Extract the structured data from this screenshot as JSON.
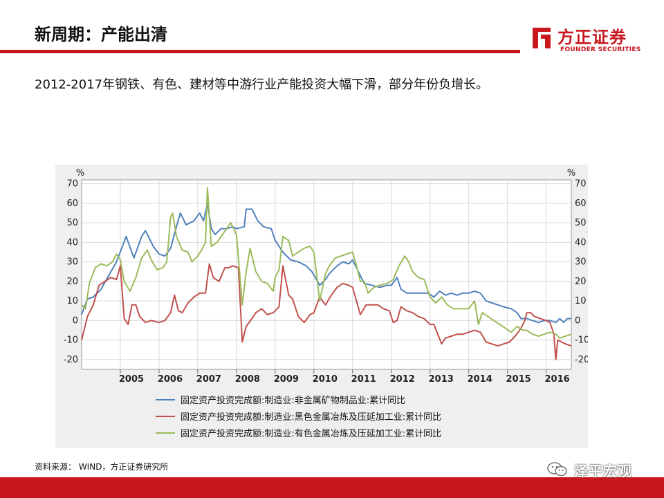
{
  "slide": {
    "title": "新周期：产能出清",
    "subtitle": "2012-2017年钢铁、有色、建材等中游行业产能投资大幅下滑，部分年份负增长。",
    "source": "资料来源： WIND，方正证券研究所",
    "logo_cn": "方正证券",
    "logo_en": "FOUNDER SECURITIES",
    "watermark": "泽平宏观",
    "brand_color": "#c8161d"
  },
  "chart_data": {
    "type": "line",
    "y_unit_left": "%",
    "y_unit_right": "%",
    "ylim": [
      -25,
      72
    ],
    "y_ticks": [
      70,
      60,
      50,
      40,
      30,
      20,
      10,
      0,
      -10,
      -20
    ],
    "xlim": [
      2004.0,
      2016.65
    ],
    "x_ticks": [
      2005,
      2006,
      2007,
      2008,
      2009,
      2010,
      2011,
      2012,
      2013,
      2014,
      2015,
      2016
    ],
    "legend_position": "bottom",
    "grid": true,
    "series": [
      {
        "name": "固定资产投资完成额:制造业:非金属矿物制品业:累计同比",
        "color": "#4f81bd",
        "points": [
          [
            2004.0,
            3
          ],
          [
            2004.15,
            11
          ],
          [
            2004.3,
            12
          ],
          [
            2004.5,
            16
          ],
          [
            2004.7,
            23
          ],
          [
            2004.9,
            30
          ],
          [
            2005.15,
            43
          ],
          [
            2005.35,
            32
          ],
          [
            2005.55,
            43
          ],
          [
            2005.65,
            46
          ],
          [
            2005.85,
            38
          ],
          [
            2006.0,
            34
          ],
          [
            2006.15,
            33
          ],
          [
            2006.3,
            37
          ],
          [
            2006.45,
            48
          ],
          [
            2006.55,
            55
          ],
          [
            2006.7,
            49
          ],
          [
            2006.9,
            51
          ],
          [
            2007.05,
            55
          ],
          [
            2007.15,
            51
          ],
          [
            2007.25,
            60
          ],
          [
            2007.35,
            47
          ],
          [
            2007.45,
            44
          ],
          [
            2007.6,
            47
          ],
          [
            2007.75,
            47
          ],
          [
            2007.9,
            48
          ],
          [
            2008.0,
            47
          ],
          [
            2008.2,
            48
          ],
          [
            2008.25,
            57
          ],
          [
            2008.4,
            57
          ],
          [
            2008.55,
            51
          ],
          [
            2008.7,
            48
          ],
          [
            2008.9,
            47
          ],
          [
            2009.0,
            41
          ],
          [
            2009.2,
            35
          ],
          [
            2009.4,
            31
          ],
          [
            2009.6,
            30
          ],
          [
            2009.8,
            28
          ],
          [
            2009.95,
            25
          ],
          [
            2010.15,
            18
          ],
          [
            2010.3,
            21
          ],
          [
            2010.4,
            24
          ],
          [
            2010.6,
            28
          ],
          [
            2010.75,
            30
          ],
          [
            2010.9,
            29
          ],
          [
            2011.0,
            31
          ],
          [
            2011.15,
            25
          ],
          [
            2011.3,
            19
          ],
          [
            2011.5,
            18
          ],
          [
            2011.7,
            17
          ],
          [
            2011.9,
            18
          ],
          [
            2012.0,
            18
          ],
          [
            2012.15,
            22
          ],
          [
            2012.25,
            16
          ],
          [
            2012.4,
            14
          ],
          [
            2012.6,
            14
          ],
          [
            2012.8,
            14
          ],
          [
            2012.95,
            14
          ],
          [
            2013.1,
            12
          ],
          [
            2013.25,
            15
          ],
          [
            2013.4,
            13
          ],
          [
            2013.55,
            14
          ],
          [
            2013.7,
            13
          ],
          [
            2013.85,
            14
          ],
          [
            2014.0,
            14
          ],
          [
            2014.15,
            15
          ],
          [
            2014.3,
            14
          ],
          [
            2014.45,
            10
          ],
          [
            2014.6,
            9
          ],
          [
            2014.75,
            8
          ],
          [
            2014.9,
            7
          ],
          [
            2015.1,
            6
          ],
          [
            2015.25,
            4
          ],
          [
            2015.35,
            1
          ],
          [
            2015.5,
            1
          ],
          [
            2015.65,
            0
          ],
          [
            2015.8,
            -1
          ],
          [
            2015.95,
            0
          ],
          [
            2016.1,
            0
          ],
          [
            2016.25,
            -1
          ],
          [
            2016.35,
            1
          ],
          [
            2016.45,
            -1
          ],
          [
            2016.55,
            1
          ],
          [
            2016.65,
            1
          ]
        ]
      },
      {
        "name": "固定资产投资完成额:制造业:黑色金属冶炼及压延加工业:累计同比",
        "color": "#c0504d",
        "points": [
          [
            2004.0,
            -10
          ],
          [
            2004.15,
            2
          ],
          [
            2004.3,
            8
          ],
          [
            2004.45,
            18
          ],
          [
            2004.6,
            20
          ],
          [
            2004.75,
            22
          ],
          [
            2004.9,
            21
          ],
          [
            2005.0,
            28
          ],
          [
            2005.1,
            1
          ],
          [
            2005.2,
            -2
          ],
          [
            2005.3,
            8
          ],
          [
            2005.4,
            8
          ],
          [
            2005.5,
            2
          ],
          [
            2005.65,
            -1
          ],
          [
            2005.8,
            0
          ],
          [
            2006.0,
            -1
          ],
          [
            2006.15,
            0
          ],
          [
            2006.3,
            4
          ],
          [
            2006.4,
            13
          ],
          [
            2006.5,
            5
          ],
          [
            2006.6,
            4
          ],
          [
            2006.75,
            9
          ],
          [
            2006.9,
            12
          ],
          [
            2007.05,
            14
          ],
          [
            2007.2,
            14
          ],
          [
            2007.3,
            29
          ],
          [
            2007.4,
            22
          ],
          [
            2007.55,
            20
          ],
          [
            2007.7,
            27
          ],
          [
            2007.8,
            27
          ],
          [
            2007.9,
            28
          ],
          [
            2008.05,
            27
          ],
          [
            2008.15,
            -11
          ],
          [
            2008.25,
            -3
          ],
          [
            2008.4,
            1
          ],
          [
            2008.5,
            4
          ],
          [
            2008.65,
            6
          ],
          [
            2008.8,
            3
          ],
          [
            2008.95,
            4
          ],
          [
            2009.0,
            5
          ],
          [
            2009.1,
            7
          ],
          [
            2009.2,
            28
          ],
          [
            2009.35,
            13
          ],
          [
            2009.45,
            11
          ],
          [
            2009.6,
            2
          ],
          [
            2009.75,
            -1
          ],
          [
            2009.9,
            3
          ],
          [
            2010.0,
            4
          ],
          [
            2010.15,
            12
          ],
          [
            2010.3,
            8
          ],
          [
            2010.45,
            13
          ],
          [
            2010.6,
            17
          ],
          [
            2010.75,
            19
          ],
          [
            2010.9,
            18
          ],
          [
            2011.0,
            17
          ],
          [
            2011.1,
            10
          ],
          [
            2011.2,
            3
          ],
          [
            2011.35,
            8
          ],
          [
            2011.5,
            8
          ],
          [
            2011.65,
            8
          ],
          [
            2011.8,
            6
          ],
          [
            2011.95,
            5
          ],
          [
            2012.05,
            -1
          ],
          [
            2012.15,
            0
          ],
          [
            2012.25,
            7
          ],
          [
            2012.4,
            5
          ],
          [
            2012.55,
            4
          ],
          [
            2012.7,
            2
          ],
          [
            2012.85,
            1
          ],
          [
            2013.0,
            -2
          ],
          [
            2013.1,
            -2
          ],
          [
            2013.2,
            -7
          ],
          [
            2013.3,
            -12
          ],
          [
            2013.4,
            -9
          ],
          [
            2013.55,
            -8
          ],
          [
            2013.7,
            -7
          ],
          [
            2013.85,
            -7
          ],
          [
            2014.0,
            -6
          ],
          [
            2014.15,
            -5
          ],
          [
            2014.3,
            -6
          ],
          [
            2014.45,
            -11
          ],
          [
            2014.6,
            -12
          ],
          [
            2014.75,
            -13
          ],
          [
            2014.9,
            -12
          ],
          [
            2015.05,
            -11
          ],
          [
            2015.2,
            -8
          ],
          [
            2015.35,
            -4
          ],
          [
            2015.45,
            0
          ],
          [
            2015.5,
            4
          ],
          [
            2015.6,
            4
          ],
          [
            2015.7,
            2
          ],
          [
            2015.85,
            1
          ],
          [
            2016.0,
            0
          ],
          [
            2016.1,
            -1
          ],
          [
            2016.2,
            -7
          ],
          [
            2016.25,
            -20
          ],
          [
            2016.3,
            -10
          ],
          [
            2016.4,
            -11
          ],
          [
            2016.5,
            -12
          ],
          [
            2016.65,
            -13
          ]
        ]
      },
      {
        "name": "固定资产投资完成额:制造业:有色金属冶炼及压延加工业:累计同比",
        "color": "#9bbb59",
        "points": [
          [
            2004.0,
            8
          ],
          [
            2004.1,
            6
          ],
          [
            2004.2,
            19
          ],
          [
            2004.35,
            27
          ],
          [
            2004.5,
            29
          ],
          [
            2004.65,
            28
          ],
          [
            2004.8,
            30
          ],
          [
            2004.9,
            34
          ],
          [
            2005.0,
            31
          ],
          [
            2005.1,
            20
          ],
          [
            2005.25,
            15
          ],
          [
            2005.4,
            22
          ],
          [
            2005.55,
            32
          ],
          [
            2005.7,
            36
          ],
          [
            2005.8,
            31
          ],
          [
            2005.95,
            26
          ],
          [
            2006.1,
            27
          ],
          [
            2006.2,
            30
          ],
          [
            2006.3,
            53
          ],
          [
            2006.35,
            55
          ],
          [
            2006.45,
            43
          ],
          [
            2006.6,
            36
          ],
          [
            2006.75,
            35
          ],
          [
            2006.85,
            30
          ],
          [
            2007.0,
            33
          ],
          [
            2007.1,
            36
          ],
          [
            2007.2,
            40
          ],
          [
            2007.25,
            68
          ],
          [
            2007.35,
            38
          ],
          [
            2007.5,
            40
          ],
          [
            2007.6,
            43
          ],
          [
            2007.75,
            47
          ],
          [
            2007.85,
            50
          ],
          [
            2008.0,
            44
          ],
          [
            2008.15,
            8
          ],
          [
            2008.25,
            25
          ],
          [
            2008.35,
            37
          ],
          [
            2008.5,
            25
          ],
          [
            2008.65,
            20
          ],
          [
            2008.8,
            19
          ],
          [
            2008.95,
            15
          ],
          [
            2009.0,
            22
          ],
          [
            2009.1,
            26
          ],
          [
            2009.2,
            43
          ],
          [
            2009.35,
            41
          ],
          [
            2009.45,
            33
          ],
          [
            2009.6,
            35
          ],
          [
            2009.75,
            37
          ],
          [
            2009.9,
            38
          ],
          [
            2010.0,
            35
          ],
          [
            2010.15,
            10
          ],
          [
            2010.3,
            24
          ],
          [
            2010.4,
            28
          ],
          [
            2010.55,
            32
          ],
          [
            2010.7,
            33
          ],
          [
            2010.85,
            34
          ],
          [
            2011.0,
            35
          ],
          [
            2011.1,
            28
          ],
          [
            2011.2,
            20
          ],
          [
            2011.3,
            20
          ],
          [
            2011.4,
            14
          ],
          [
            2011.55,
            17
          ],
          [
            2011.7,
            18
          ],
          [
            2011.9,
            19
          ],
          [
            2012.05,
            21
          ],
          [
            2012.2,
            28
          ],
          [
            2012.35,
            33
          ],
          [
            2012.45,
            30
          ],
          [
            2012.55,
            25
          ],
          [
            2012.7,
            22
          ],
          [
            2012.85,
            21
          ],
          [
            2013.0,
            12
          ],
          [
            2013.15,
            9
          ],
          [
            2013.3,
            12
          ],
          [
            2013.45,
            8
          ],
          [
            2013.6,
            6
          ],
          [
            2013.75,
            6
          ],
          [
            2013.9,
            6
          ],
          [
            2014.0,
            6
          ],
          [
            2014.15,
            10
          ],
          [
            2014.25,
            -2
          ],
          [
            2014.35,
            4
          ],
          [
            2014.5,
            2
          ],
          [
            2014.65,
            0
          ],
          [
            2014.8,
            -2
          ],
          [
            2014.95,
            -4
          ],
          [
            2015.1,
            -6
          ],
          [
            2015.25,
            -3
          ],
          [
            2015.4,
            -5
          ],
          [
            2015.5,
            -5
          ],
          [
            2015.65,
            -7
          ],
          [
            2015.8,
            -8
          ],
          [
            2015.95,
            -7
          ],
          [
            2016.1,
            -6
          ],
          [
            2016.25,
            -7
          ],
          [
            2016.35,
            -9
          ],
          [
            2016.5,
            -8
          ],
          [
            2016.65,
            -7
          ]
        ]
      }
    ]
  }
}
